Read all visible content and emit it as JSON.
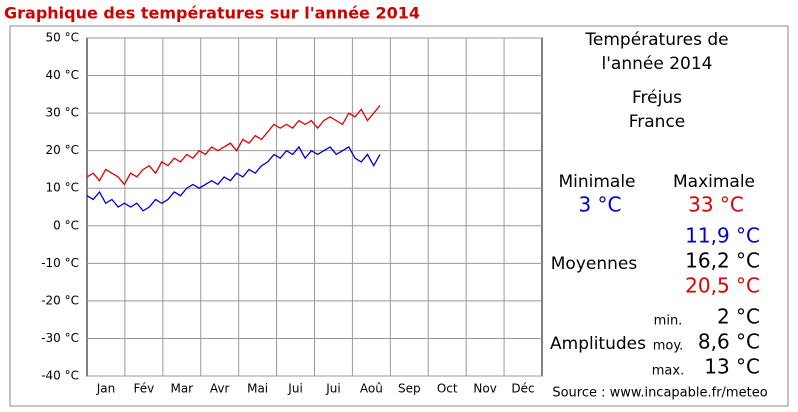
{
  "chart_data": {
    "type": "line",
    "title": "Graphique des températures sur l'année 2014",
    "months": [
      "Jan",
      "Fév",
      "Mar",
      "Avr",
      "Mai",
      "Jui",
      "Jui",
      "Aoû",
      "Sep",
      "Oct",
      "Nov",
      "Déc"
    ],
    "x": [
      0,
      5,
      10,
      15,
      20,
      25,
      30,
      35,
      40,
      45,
      50,
      55,
      60,
      65,
      70,
      75,
      80,
      85,
      90,
      95,
      100,
      105,
      110,
      115,
      120,
      125,
      130,
      135,
      140,
      145,
      150,
      155,
      160,
      165,
      170,
      175,
      180,
      185,
      190,
      195,
      200,
      205,
      210,
      215,
      220,
      225,
      230,
      235
    ],
    "xlim": [
      0,
      365
    ],
    "ylim": [
      -40,
      50
    ],
    "yticks": [
      {
        "value": -40,
        "label": "-40 °C"
      },
      {
        "value": -30,
        "label": "-30 °C"
      },
      {
        "value": -20,
        "label": "-20 °C"
      },
      {
        "value": -10,
        "label": "-10 °C"
      },
      {
        "value": 0,
        "label": "0 °C"
      },
      {
        "value": 10,
        "label": "10 °C"
      },
      {
        "value": 20,
        "label": "20 °C"
      },
      {
        "value": 30,
        "label": "30 °C"
      },
      {
        "value": 40,
        "label": "40 °C"
      },
      {
        "value": 50,
        "label": "50 °C"
      }
    ],
    "grid": true,
    "series": [
      {
        "color": "#e00000",
        "values": [
          13,
          14,
          12,
          15,
          14,
          13,
          11,
          14,
          13,
          15,
          16,
          14,
          17,
          16,
          18,
          17,
          19,
          18,
          20,
          19,
          21,
          20,
          21,
          22,
          20,
          23,
          22,
          24,
          23,
          25,
          27,
          26,
          27,
          26,
          28,
          27,
          28,
          26,
          28,
          29,
          28,
          27,
          30,
          29,
          31,
          28,
          30,
          32
        ]
      },
      {
        "color": "#0000cc",
        "values": [
          8,
          7,
          9,
          6,
          7,
          5,
          6,
          5,
          6,
          4,
          5,
          7,
          6,
          7,
          9,
          8,
          10,
          11,
          10,
          11,
          12,
          11,
          13,
          12,
          14,
          13,
          15,
          14,
          16,
          17,
          19,
          18,
          20,
          19,
          21,
          18,
          20,
          19,
          20,
          21,
          19,
          20,
          21,
          18,
          17,
          19,
          16,
          19
        ]
      }
    ]
  },
  "panel": {
    "heading": [
      "Températures de",
      "l'année 2014"
    ],
    "place": [
      "Fréjus",
      "France"
    ],
    "min_label": "Minimale",
    "min_value": "3 °C",
    "max_label": "Maximale",
    "max_value": "33 °C",
    "means_label": "Moyennes",
    "means": [
      "11,9 °C",
      "16,2 °C",
      "20,5 °C"
    ],
    "amp_label": "Amplitudes",
    "amp_names": [
      "min.",
      "moy.",
      "max."
    ],
    "amps": [
      "2 °C",
      "8,6 °C",
      "13 °C"
    ],
    "source": "Source : www.incapable.fr/meteo"
  }
}
